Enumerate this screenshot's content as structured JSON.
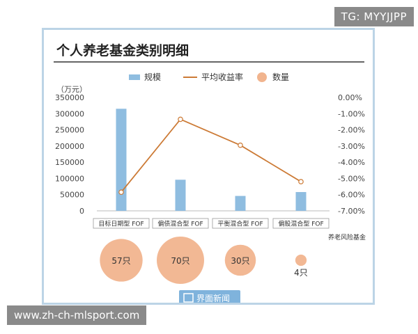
{
  "watermarks": {
    "top_right": "TG: MYYJJPP",
    "bottom_left": "www.zh-ch-mlsport.com",
    "brand": "界面新闻",
    "faint_mark": "界面新闻"
  },
  "colors": {
    "bar": "#8fbde0",
    "line": "#cc7a35",
    "bubble": "#f1b48e",
    "title_rule": "#333333",
    "card_border": "#bcd4e6"
  },
  "chart_data": {
    "type": "bar",
    "title": "个人养老基金类别明细",
    "legend": [
      {
        "key": "bar",
        "label": "规模"
      },
      {
        "key": "line",
        "label": "平均收益率"
      },
      {
        "key": "bubble",
        "label": "数量"
      }
    ],
    "legend_position": "top",
    "categories": [
      "目标日期型 FOF",
      "偏债混合型 FOF",
      "平衡混合型 FOF",
      "偏股混合型 FOF"
    ],
    "series": [
      {
        "name": "规模",
        "type": "bar",
        "axis": "left",
        "values": [
          315000,
          96000,
          46000,
          58000
        ]
      },
      {
        "name": "平均收益率",
        "type": "line",
        "axis": "right",
        "values": [
          -5.85,
          -1.35,
          -2.95,
          -5.2
        ]
      },
      {
        "name": "数量",
        "type": "bubble",
        "values": [
          57,
          70,
          30,
          4
        ],
        "labels": [
          "57只",
          "70只",
          "30只",
          "4只"
        ]
      }
    ],
    "left_axis": {
      "unit_label": "（万元）",
      "ylim": [
        0,
        350000
      ],
      "ticks": [
        "0",
        "50000",
        "100000",
        "150000",
        "200000",
        "250000",
        "300000",
        "350000"
      ]
    },
    "right_axis": {
      "ylim": [
        -7.0,
        0.0
      ],
      "ticks": [
        "0.00%",
        "-1.00%",
        "-2.00%",
        "-3.00%",
        "-4.00%",
        "-5.00%",
        "-6.00%",
        "-7.00%"
      ]
    },
    "annotation": "养老风险基金",
    "grid": false
  }
}
